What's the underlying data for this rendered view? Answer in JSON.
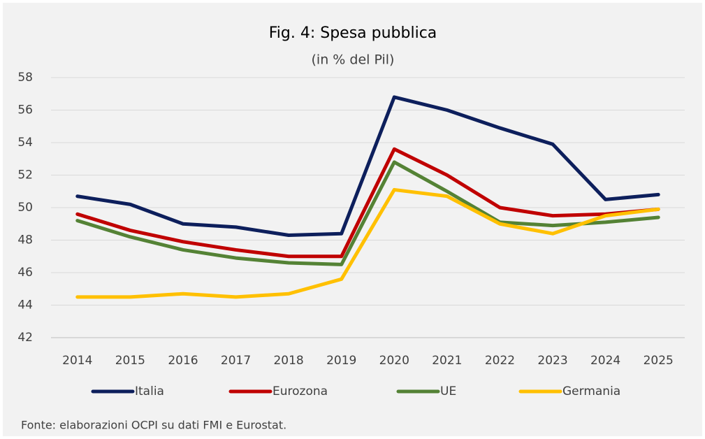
{
  "chart_data": {
    "type": "line",
    "title": "Fig. 4: Spesa pubblica",
    "subtitle": "(in % del Pil)",
    "source": "Fonte: elaborazioni OCPI su dati FMI e Eurostat.",
    "categories": [
      "2014",
      "2015",
      "2016",
      "2017",
      "2018",
      "2019",
      "2020",
      "2021",
      "2022",
      "2023",
      "2024",
      "2025"
    ],
    "series": [
      {
        "name": "Italia",
        "color": "#0d1f5c",
        "values": [
          50.7,
          50.2,
          49.0,
          48.8,
          48.3,
          48.4,
          56.8,
          56.0,
          54.9,
          53.9,
          50.5,
          50.8
        ]
      },
      {
        "name": "Eurozona",
        "color": "#c00000",
        "values": [
          49.6,
          48.6,
          47.9,
          47.4,
          47.0,
          47.0,
          53.6,
          52.0,
          50.0,
          49.5,
          49.6,
          49.9
        ]
      },
      {
        "name": "UE",
        "color": "#548235",
        "values": [
          49.2,
          48.2,
          47.4,
          46.9,
          46.6,
          46.5,
          52.8,
          51.0,
          49.1,
          48.9,
          49.1,
          49.4
        ]
      },
      {
        "name": "Germania",
        "color": "#ffc000",
        "values": [
          44.5,
          44.5,
          44.7,
          44.5,
          44.7,
          45.6,
          51.1,
          50.7,
          49.0,
          48.4,
          49.5,
          49.9
        ]
      }
    ],
    "ylim": [
      42,
      58
    ],
    "yticks": [
      42,
      44,
      46,
      48,
      50,
      52,
      54,
      56,
      58
    ],
    "grid": true,
    "legend": "bottom"
  }
}
